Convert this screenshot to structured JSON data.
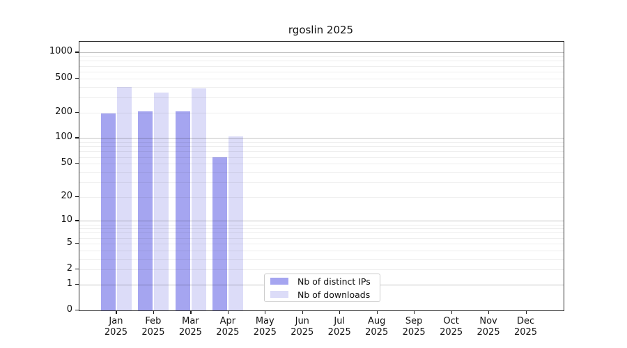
{
  "chart_data": {
    "type": "bar",
    "title": "rgoslin 2025",
    "categories": [
      "Jan",
      "Feb",
      "Mar",
      "Apr",
      "May",
      "Jun",
      "Jul",
      "Aug",
      "Sep",
      "Oct",
      "Nov",
      "Dec"
    ],
    "category_year": "2025",
    "series": [
      {
        "name": "Nb of distinct IPs",
        "color": "#a5a5f0",
        "values": [
          195,
          207,
          206,
          60,
          0,
          0,
          0,
          0,
          0,
          0,
          0,
          0
        ]
      },
      {
        "name": "Nb of downloads",
        "color": "#dcdcf8",
        "values": [
          395,
          340,
          380,
          105,
          0,
          0,
          0,
          0,
          0,
          0,
          0,
          0
        ]
      }
    ],
    "y_axis": {
      "scale": "log1p",
      "tick_labels": [
        0,
        1,
        2,
        5,
        10,
        20,
        50,
        100,
        200,
        500,
        1000
      ],
      "major_gridlines": [
        1,
        10,
        100,
        1000
      ],
      "max": 1335
    },
    "xlabel": "",
    "ylabel": "",
    "grid": true,
    "legend_position": "inside-bottom-center"
  },
  "colors": {
    "frame": "#2b2b2b",
    "background": "#ffffff",
    "distinct_ips_bar": "#a5a5f0",
    "downloads_bar": "#dcdcf8"
  }
}
